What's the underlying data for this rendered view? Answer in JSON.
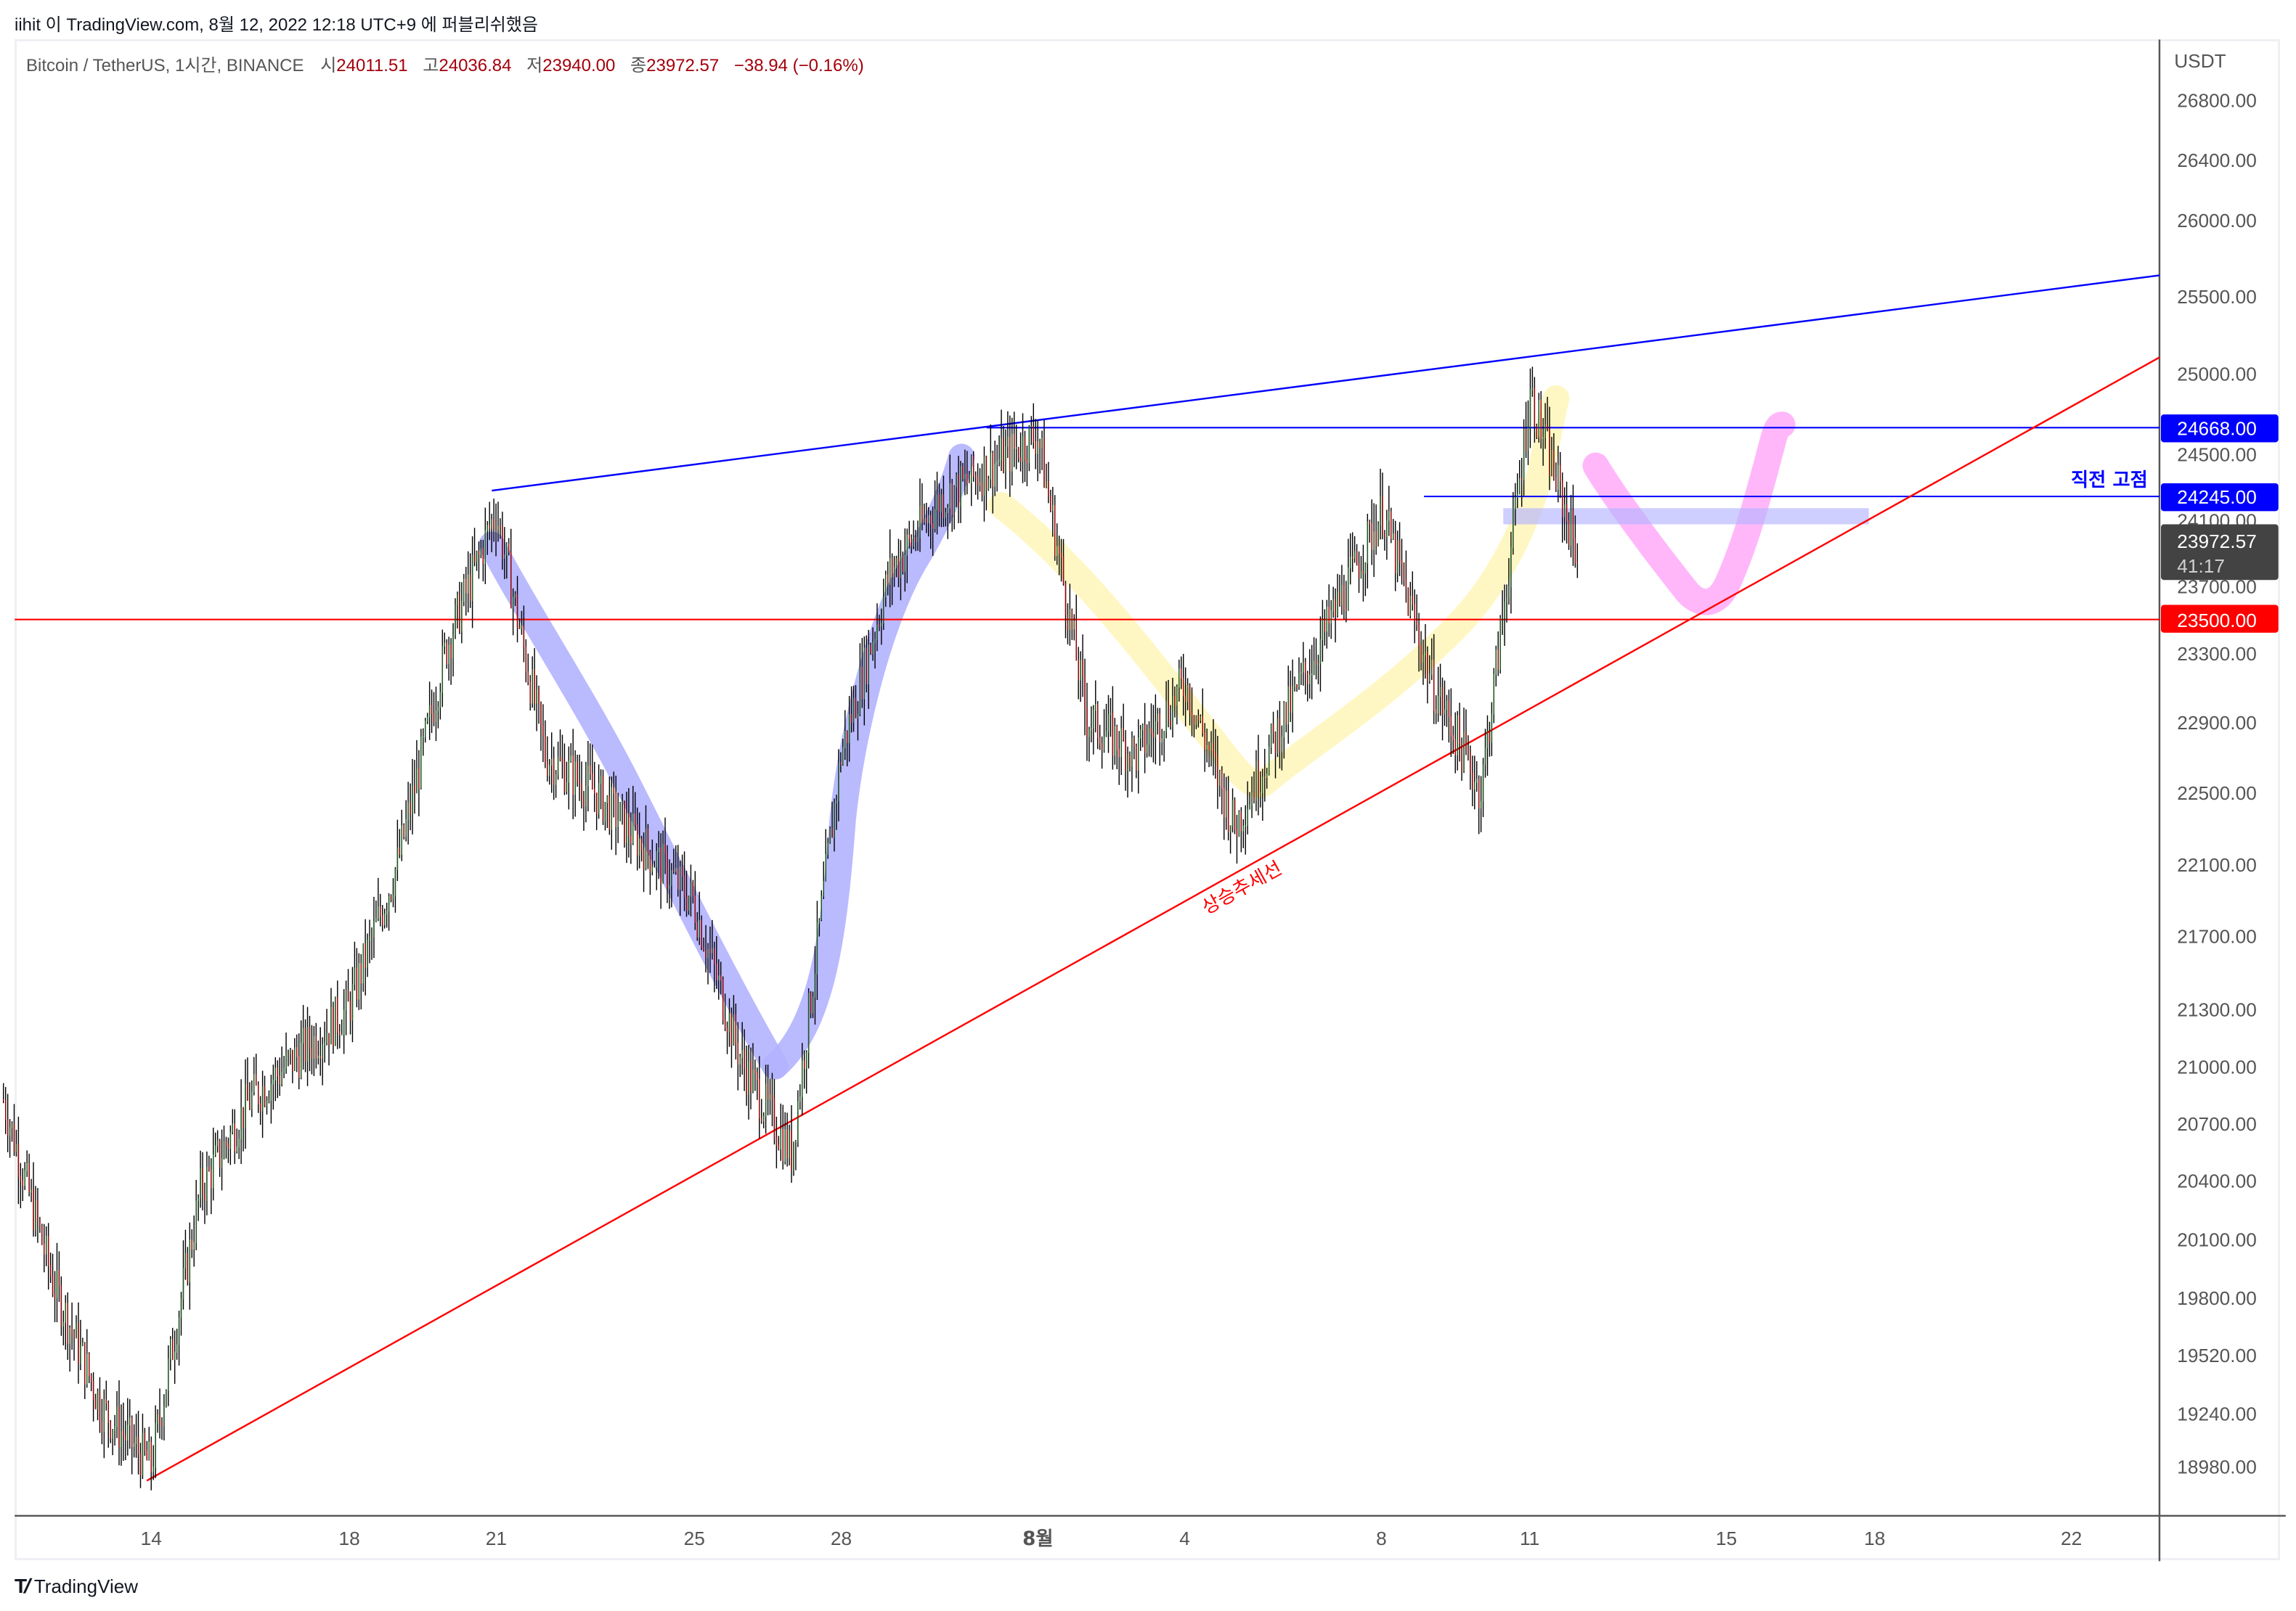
{
  "attribution": "iihit 이 TradingView.com, 8월 12, 2022 12:18 UTC+9 에 퍼블리쉬했음",
  "legend": {
    "symbol": "Bitcoin / TetherUS, 1시간, BINANCE",
    "open_label": "시",
    "open": "24011.51",
    "high_label": "고",
    "high": "24036.84",
    "low_label": "저",
    "low": "23940.00",
    "close_label": "종",
    "close": "23972.57",
    "change": "−38.94 (−0.16%)"
  },
  "price_axis": {
    "currency": "USDT",
    "ticks": [
      "26800.00",
      "26400.00",
      "26000.00",
      "25500.00",
      "25000.00",
      "24500.00",
      "24100.00",
      "23700.00",
      "23300.00",
      "22900.00",
      "22500.00",
      "22100.00",
      "21700.00",
      "21300.00",
      "21000.00",
      "20700.00",
      "20400.00",
      "20100.00",
      "19800.00",
      "19520.00",
      "19240.00",
      "18980.00"
    ],
    "tags": {
      "prev_high": "24668.00",
      "recent_high": "24245.00",
      "current_price": "23972.57",
      "countdown": "41:17",
      "support": "23500.00"
    }
  },
  "time_axis": {
    "ticks": [
      "14",
      "18",
      "21",
      "25",
      "28",
      "8월",
      "4",
      "8",
      "11",
      "15",
      "18",
      "22"
    ]
  },
  "annotations": {
    "trendline_label": "상승추세선",
    "recent_high_label": "직전 고점"
  },
  "colors": {
    "up": "#1b5e20",
    "down": "#9b0000",
    "wick": "#000000",
    "resistance_line": "#0000ff",
    "trendline": "#ff0000",
    "current_price_tag": "#434343",
    "blue_highlight": "#b3b3ff",
    "yellow_highlight": "#fff9c4",
    "pink_highlight": "#ffb3fa"
  },
  "brand": {
    "logo_text": "TradingView"
  },
  "chart_data": {
    "type": "candlestick",
    "title": "Bitcoin / TetherUS, 1시간, BINANCE",
    "xlabel": "",
    "ylabel": "USDT",
    "ylim": [
      18800,
      27000
    ],
    "x_ticks": [
      "14",
      "18",
      "21",
      "25",
      "28",
      "8월",
      "4",
      "8",
      "11",
      "15",
      "18",
      "22"
    ],
    "approx_path": [
      {
        "x": "Jul 11",
        "price": 21000
      },
      {
        "x": "Jul 12",
        "price": 20000
      },
      {
        "x": "Jul 13",
        "price": 19300
      },
      {
        "x": "Jul 14",
        "price": 18980
      },
      {
        "x": "Jul 15",
        "price": 20500
      },
      {
        "x": "Jul 16",
        "price": 21000
      },
      {
        "x": "Jul 18",
        "price": 21500
      },
      {
        "x": "Jul 19",
        "price": 22300
      },
      {
        "x": "Jul 20",
        "price": 23500
      },
      {
        "x": "Jul 21",
        "price": 24245
      },
      {
        "x": "Jul 22",
        "price": 22900
      },
      {
        "x": "Jul 23",
        "price": 22700
      },
      {
        "x": "Jul 25",
        "price": 22100
      },
      {
        "x": "Jul 26",
        "price": 21200
      },
      {
        "x": "Jul 27",
        "price": 20700
      },
      {
        "x": "Jul 28",
        "price": 22900
      },
      {
        "x": "Jul 29",
        "price": 23900
      },
      {
        "x": "Jul 30",
        "price": 24300
      },
      {
        "x": "Aug 1",
        "price": 24668
      },
      {
        "x": "Aug 2",
        "price": 23100
      },
      {
        "x": "Aug 3",
        "price": 22900
      },
      {
        "x": "Aug 4",
        "price": 23300
      },
      {
        "x": "Aug 5",
        "price": 22500
      },
      {
        "x": "Aug 6",
        "price": 23100
      },
      {
        "x": "Aug 8",
        "price": 24245
      },
      {
        "x": "Aug 9",
        "price": 23300
      },
      {
        "x": "Aug 10",
        "price": 22700
      },
      {
        "x": "Aug 11",
        "price": 24900
      },
      {
        "x": "Aug 12",
        "price": 23972.57
      }
    ],
    "horizontal_lines": [
      {
        "price": 24668,
        "color": "#0000ff",
        "label": "24668.00"
      },
      {
        "price": 24245,
        "color": "#0000ff",
        "label": "24245.00",
        "annotation": "직전 고점"
      },
      {
        "price": 23500,
        "color": "#ff0000",
        "label": "23500.00"
      }
    ],
    "trendlines": [
      {
        "name": "resistance",
        "color": "#0000ff",
        "from": {
          "x": "Jul 21",
          "price": 24245
        },
        "to": {
          "x": "Aug 23",
          "price": 25600
        }
      },
      {
        "name": "상승추세선",
        "color": "#ff0000",
        "from": {
          "x": "Jul 14",
          "price": 18880
        },
        "to": {
          "x": "Aug 23",
          "price": 25100
        }
      }
    ],
    "last": {
      "open": 24011.51,
      "high": 24036.84,
      "low": 23940.0,
      "close": 23972.57,
      "change": -38.94,
      "change_pct": -0.16
    }
  }
}
